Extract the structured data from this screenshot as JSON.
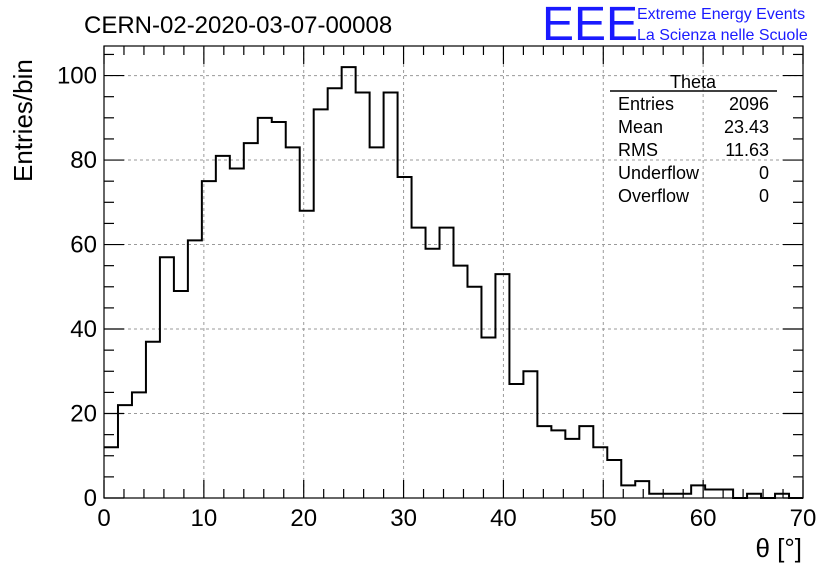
{
  "header": {
    "run_title": "CERN-02-2020-03-07-00008",
    "logo_text": "EEE",
    "logo_line1": "Extreme Energy Events",
    "logo_line2": "La Scienza nelle Scuole",
    "brand_color": "#1a1aff"
  },
  "stats": {
    "title": "Theta",
    "rows": [
      {
        "label": "Entries",
        "value": "2096"
      },
      {
        "label": "Mean",
        "value": "23.43"
      },
      {
        "label": "RMS",
        "value": "11.63"
      },
      {
        "label": "Underflow",
        "value": "0"
      },
      {
        "label": "Overflow",
        "value": "0"
      }
    ]
  },
  "chart_data": {
    "type": "bar",
    "subtype": "step-histogram",
    "title": "CERN-02-2020-03-07-00008",
    "xlabel": "θ [°]",
    "ylabel": "Entries/bin",
    "xlim": [
      0,
      70
    ],
    "ylim": [
      0,
      107
    ],
    "grid": true,
    "bin_width": 1.4,
    "bin_start": 0,
    "xticks": [
      0,
      10,
      20,
      30,
      40,
      50,
      60,
      70
    ],
    "yticks": [
      0,
      20,
      40,
      60,
      80,
      100
    ],
    "values": [
      12,
      22,
      25,
      37,
      57,
      49,
      61,
      75,
      81,
      78,
      84,
      90,
      89,
      83,
      68,
      92,
      97,
      102,
      96,
      83,
      96,
      76,
      64,
      59,
      64,
      55,
      50,
      38,
      53,
      27,
      30,
      17,
      16,
      14,
      17,
      12,
      9,
      3,
      4,
      1,
      1,
      1,
      3,
      2,
      2,
      0,
      1,
      0,
      1,
      0
    ]
  }
}
